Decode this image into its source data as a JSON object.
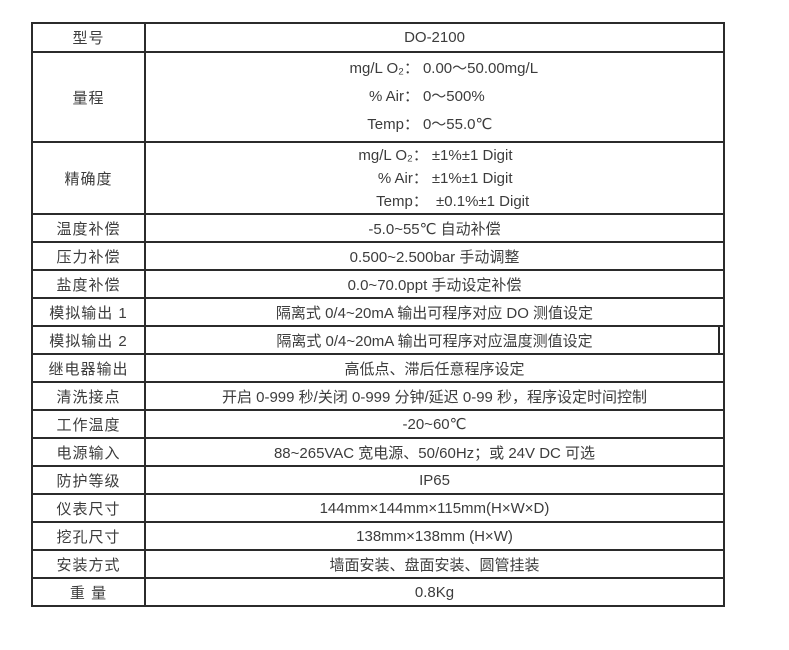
{
  "table": {
    "rows": [
      {
        "label": "型号",
        "value": "DO-2100"
      },
      {
        "label": "量程",
        "lines": [
          {
            "k": "mg/L O₂：",
            "v": "0.00～50.00mg/L"
          },
          {
            "k": "% Air：",
            "v": "0～500%"
          },
          {
            "k": "Temp：",
            "v": "0～55.0℃"
          }
        ]
      },
      {
        "label": "精确度",
        "lines": [
          {
            "k": "mg/L O₂：",
            "v": "±1%±1 Digit"
          },
          {
            "k": "% Air：",
            "v": "±1%±1 Digit"
          },
          {
            "k": "Temp：",
            "v": " ±0.1%±1 Digit"
          }
        ]
      },
      {
        "label": "温度补偿",
        "value": "-5.0~55℃ 自动补偿"
      },
      {
        "label": "压力补偿",
        "value": "0.500~2.500bar 手动调整"
      },
      {
        "label": "盐度补偿",
        "value": "0.0~70.0ppt 手动设定补偿"
      },
      {
        "label": "模拟输出 1",
        "value": "隔离式 0/4~20mA 输出可程序对应 DO 测值设定"
      },
      {
        "label": "模拟输出 2",
        "value": "隔离式 0/4~20mA 输出可程序对应温度测值设定"
      },
      {
        "label": "继电器输出",
        "value": "高低点、滞后任意程序设定"
      },
      {
        "label": "清洗接点",
        "value": "开启 0-999 秒/关闭 0-999 分钟/延迟 0-99 秒，程序设定时间控制"
      },
      {
        "label": "工作温度",
        "value": "-20~60℃"
      },
      {
        "label": "电源输入",
        "value": "88~265VAC 宽电源、50/60Hz；或 24V DC 可选"
      },
      {
        "label": "防护等级",
        "value": "IP65"
      },
      {
        "label": "仪表尺寸",
        "value": "144mm×144mm×115mm(H×W×D)"
      },
      {
        "label": "挖孔尺寸",
        "value": "138mm×138mm (H×W)"
      },
      {
        "label": "安装方式",
        "value": "墙面安装、盘面安装、圆管挂装"
      },
      {
        "label": "重 量",
        "value": "0.8Kg"
      }
    ],
    "colors": {
      "border": "#2b2b2b",
      "text": "#3c3c3c",
      "background": "#ffffff"
    }
  }
}
